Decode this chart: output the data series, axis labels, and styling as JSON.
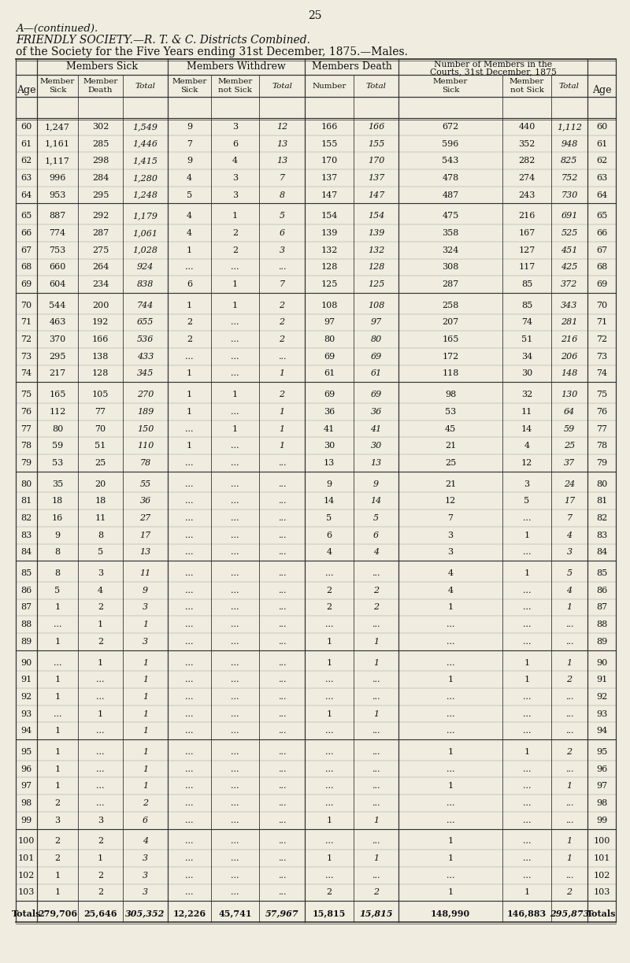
{
  "page_number": "25",
  "title_line1": "A—(continued).",
  "title_line2": "FRIENDLY SOCIETY.—R. T. & C. Districts Combined.",
  "title_line3": "of the Society for the Five Years ending 31st December, 1875.—Males.",
  "rows": [
    {
      "age": "60",
      "ms1": "1,247",
      "ms2": "302",
      "ms3": "1,549",
      "mw1": "9",
      "mw2": "3",
      "mw3": "12",
      "md1": "166",
      "md2": "166",
      "c1": "672",
      "c2": "440",
      "c3": "1,112"
    },
    {
      "age": "61",
      "ms1": "1,161",
      "ms2": "285",
      "ms3": "1,446",
      "mw1": "7",
      "mw2": "6",
      "mw3": "13",
      "md1": "155",
      "md2": "155",
      "c1": "596",
      "c2": "352",
      "c3": "948"
    },
    {
      "age": "62",
      "ms1": "1,117",
      "ms2": "298",
      "ms3": "1,415",
      "mw1": "9",
      "mw2": "4",
      "mw3": "13",
      "md1": "170",
      "md2": "170",
      "c1": "543",
      "c2": "282",
      "c3": "825"
    },
    {
      "age": "63",
      "ms1": "996",
      "ms2": "284",
      "ms3": "1,280",
      "mw1": "4",
      "mw2": "3",
      "mw3": "7",
      "md1": "137",
      "md2": "137",
      "c1": "478",
      "c2": "274",
      "c3": "752"
    },
    {
      "age": "64",
      "ms1": "953",
      "ms2": "295",
      "ms3": "1,248",
      "mw1": "5",
      "mw2": "3",
      "mw3": "8",
      "md1": "147",
      "md2": "147",
      "c1": "487",
      "c2": "243",
      "c3": "730"
    },
    {
      "age": "65",
      "ms1": "887",
      "ms2": "292",
      "ms3": "1,179",
      "mw1": "4",
      "mw2": "1",
      "mw3": "5",
      "md1": "154",
      "md2": "154",
      "c1": "475",
      "c2": "216",
      "c3": "691"
    },
    {
      "age": "66",
      "ms1": "774",
      "ms2": "287",
      "ms3": "1,061",
      "mw1": "4",
      "mw2": "2",
      "mw3": "6",
      "md1": "139",
      "md2": "139",
      "c1": "358",
      "c2": "167",
      "c3": "525"
    },
    {
      "age": "67",
      "ms1": "753",
      "ms2": "275",
      "ms3": "1,028",
      "mw1": "1",
      "mw2": "2",
      "mw3": "3",
      "md1": "132",
      "md2": "132",
      "c1": "324",
      "c2": "127",
      "c3": "451"
    },
    {
      "age": "68",
      "ms1": "660",
      "ms2": "264",
      "ms3": "924",
      "mw1": "...",
      "mw2": "...",
      "mw3": "...",
      "md1": "128",
      "md2": "128",
      "c1": "308",
      "c2": "117",
      "c3": "425"
    },
    {
      "age": "69",
      "ms1": "604",
      "ms2": "234",
      "ms3": "838",
      "mw1": "6",
      "mw2": "1",
      "mw3": "7",
      "md1": "125",
      "md2": "125",
      "c1": "287",
      "c2": "85",
      "c3": "372"
    },
    {
      "age": "70",
      "ms1": "544",
      "ms2": "200",
      "ms3": "744",
      "mw1": "1",
      "mw2": "1",
      "mw3": "2",
      "md1": "108",
      "md2": "108",
      "c1": "258",
      "c2": "85",
      "c3": "343"
    },
    {
      "age": "71",
      "ms1": "463",
      "ms2": "192",
      "ms3": "655",
      "mw1": "2",
      "mw2": "...",
      "mw3": "2",
      "md1": "97",
      "md2": "97",
      "c1": "207",
      "c2": "74",
      "c3": "281"
    },
    {
      "age": "72",
      "ms1": "370",
      "ms2": "166",
      "ms3": "536",
      "mw1": "2",
      "mw2": "...",
      "mw3": "2",
      "md1": "80",
      "md2": "80",
      "c1": "165",
      "c2": "51",
      "c3": "216"
    },
    {
      "age": "73",
      "ms1": "295",
      "ms2": "138",
      "ms3": "433",
      "mw1": "...",
      "mw2": "...",
      "mw3": "...",
      "md1": "69",
      "md2": "69",
      "c1": "172",
      "c2": "34",
      "c3": "206"
    },
    {
      "age": "74",
      "ms1": "217",
      "ms2": "128",
      "ms3": "345",
      "mw1": "1",
      "mw2": "...",
      "mw3": "1",
      "md1": "61",
      "md2": "61",
      "c1": "118",
      "c2": "30",
      "c3": "148"
    },
    {
      "age": "75",
      "ms1": "165",
      "ms2": "105",
      "ms3": "270",
      "mw1": "1",
      "mw2": "1",
      "mw3": "2",
      "md1": "69",
      "md2": "69",
      "c1": "98",
      "c2": "32",
      "c3": "130"
    },
    {
      "age": "76",
      "ms1": "112",
      "ms2": "77",
      "ms3": "189",
      "mw1": "1",
      "mw2": "...",
      "mw3": "1",
      "md1": "36",
      "md2": "36",
      "c1": "53",
      "c2": "11",
      "c3": "64"
    },
    {
      "age": "77",
      "ms1": "80",
      "ms2": "70",
      "ms3": "150",
      "mw1": "...",
      "mw2": "1",
      "mw3": "1",
      "md1": "41",
      "md2": "41",
      "c1": "45",
      "c2": "14",
      "c3": "59"
    },
    {
      "age": "78",
      "ms1": "59",
      "ms2": "51",
      "ms3": "110",
      "mw1": "1",
      "mw2": "...",
      "mw3": "1",
      "md1": "30",
      "md2": "30",
      "c1": "21",
      "c2": "4",
      "c3": "25"
    },
    {
      "age": "79",
      "ms1": "53",
      "ms2": "25",
      "ms3": "78",
      "mw1": "...",
      "mw2": "...",
      "mw3": "...",
      "md1": "13",
      "md2": "13",
      "c1": "25",
      "c2": "12",
      "c3": "37"
    },
    {
      "age": "80",
      "ms1": "35",
      "ms2": "20",
      "ms3": "55",
      "mw1": "...",
      "mw2": "...",
      "mw3": "...",
      "md1": "9",
      "md2": "9",
      "c1": "21",
      "c2": "3",
      "c3": "24"
    },
    {
      "age": "81",
      "ms1": "18",
      "ms2": "18",
      "ms3": "36",
      "mw1": "...",
      "mw2": "...",
      "mw3": "...",
      "md1": "14",
      "md2": "14",
      "c1": "12",
      "c2": "5",
      "c3": "17"
    },
    {
      "age": "82",
      "ms1": "16",
      "ms2": "11",
      "ms3": "27",
      "mw1": "...",
      "mw2": "...",
      "mw3": "...",
      "md1": "5",
      "md2": "5",
      "c1": "7",
      "c2": "...",
      "c3": "7"
    },
    {
      "age": "83",
      "ms1": "9",
      "ms2": "8",
      "ms3": "17",
      "mw1": "...",
      "mw2": "...",
      "mw3": "...",
      "md1": "6",
      "md2": "6",
      "c1": "3",
      "c2": "1",
      "c3": "4"
    },
    {
      "age": "84",
      "ms1": "8",
      "ms2": "5",
      "ms3": "13",
      "mw1": "...",
      "mw2": "...",
      "mw3": "...",
      "md1": "4",
      "md2": "4",
      "c1": "3",
      "c2": "...",
      "c3": "3"
    },
    {
      "age": "85",
      "ms1": "8",
      "ms2": "3",
      "ms3": "11",
      "mw1": "...",
      "mw2": "...",
      "mw3": "...",
      "md1": "...",
      "md2": "...",
      "c1": "4",
      "c2": "1",
      "c3": "5"
    },
    {
      "age": "86",
      "ms1": "5",
      "ms2": "4",
      "ms3": "9",
      "mw1": "...",
      "mw2": "...",
      "mw3": "...",
      "md1": "2",
      "md2": "2",
      "c1": "4",
      "c2": "...",
      "c3": "4"
    },
    {
      "age": "87",
      "ms1": "1",
      "ms2": "2",
      "ms3": "3",
      "mw1": "...",
      "mw2": "...",
      "mw3": "...",
      "md1": "2",
      "md2": "2",
      "c1": "1",
      "c2": "...",
      "c3": "1"
    },
    {
      "age": "88",
      "ms1": "...",
      "ms2": "1",
      "ms3": "1",
      "mw1": "...",
      "mw2": "...",
      "mw3": "...",
      "md1": "...",
      "md2": "...",
      "c1": "...",
      "c2": "...",
      "c3": "..."
    },
    {
      "age": "89",
      "ms1": "1",
      "ms2": "2",
      "ms3": "3",
      "mw1": "...",
      "mw2": "...",
      "mw3": "...",
      "md1": "1",
      "md2": "1",
      "c1": "...",
      "c2": "...",
      "c3": "..."
    },
    {
      "age": "90",
      "ms1": "...",
      "ms2": "1",
      "ms3": "1",
      "mw1": "...",
      "mw2": "...",
      "mw3": "...",
      "md1": "1",
      "md2": "1",
      "c1": "...",
      "c2": "1",
      "c3": "1"
    },
    {
      "age": "91",
      "ms1": "1",
      "ms2": "...",
      "ms3": "1",
      "mw1": "...",
      "mw2": "...",
      "mw3": "...",
      "md1": "...",
      "md2": "...",
      "c1": "1",
      "c2": "1",
      "c3": "2"
    },
    {
      "age": "92",
      "ms1": "1",
      "ms2": "...",
      "ms3": "1",
      "mw1": "...",
      "mw2": "...",
      "mw3": "...",
      "md1": "...",
      "md2": "...",
      "c1": "...",
      "c2": "...",
      "c3": "..."
    },
    {
      "age": "93",
      "ms1": "...",
      "ms2": "1",
      "ms3": "1",
      "mw1": "...",
      "mw2": "...",
      "mw3": "...",
      "md1": "1",
      "md2": "1",
      "c1": "...",
      "c2": "...",
      "c3": "..."
    },
    {
      "age": "94",
      "ms1": "1",
      "ms2": "...",
      "ms3": "1",
      "mw1": "...",
      "mw2": "...",
      "mw3": "...",
      "md1": "...",
      "md2": "...",
      "c1": "...",
      "c2": "...",
      "c3": "..."
    },
    {
      "age": "95",
      "ms1": "1",
      "ms2": "...",
      "ms3": "1",
      "mw1": "...",
      "mw2": "...",
      "mw3": "...",
      "md1": "...",
      "md2": "...",
      "c1": "1",
      "c2": "1",
      "c3": "2"
    },
    {
      "age": "96",
      "ms1": "1",
      "ms2": "...",
      "ms3": "1",
      "mw1": "...",
      "mw2": "...",
      "mw3": "...",
      "md1": "...",
      "md2": "...",
      "c1": "...",
      "c2": "...",
      "c3": "..."
    },
    {
      "age": "97",
      "ms1": "1",
      "ms2": "...",
      "ms3": "1",
      "mw1": "...",
      "mw2": "...",
      "mw3": "...",
      "md1": "...",
      "md2": "...",
      "c1": "1",
      "c2": "...",
      "c3": "1"
    },
    {
      "age": "98",
      "ms1": "2",
      "ms2": "...",
      "ms3": "2",
      "mw1": "...",
      "mw2": "...",
      "mw3": "...",
      "md1": "...",
      "md2": "...",
      "c1": "...",
      "c2": "...",
      "c3": "..."
    },
    {
      "age": "99",
      "ms1": "3",
      "ms2": "3",
      "ms3": "6",
      "mw1": "...",
      "mw2": "...",
      "mw3": "...",
      "md1": "1",
      "md2": "1",
      "c1": "...",
      "c2": "...",
      "c3": "..."
    },
    {
      "age": "100",
      "ms1": "2",
      "ms2": "2",
      "ms3": "4",
      "mw1": "...",
      "mw2": "...",
      "mw3": "...",
      "md1": "...",
      "md2": "...",
      "c1": "1",
      "c2": "...",
      "c3": "1"
    },
    {
      "age": "101",
      "ms1": "2",
      "ms2": "1",
      "ms3": "3",
      "mw1": "...",
      "mw2": "...",
      "mw3": "...",
      "md1": "1",
      "md2": "1",
      "c1": "1",
      "c2": "...",
      "c3": "1"
    },
    {
      "age": "102",
      "ms1": "1",
      "ms2": "2",
      "ms3": "3",
      "mw1": "...",
      "mw2": "...",
      "mw3": "...",
      "md1": "...",
      "md2": "...",
      "c1": "...",
      "c2": "...",
      "c3": "..."
    },
    {
      "age": "103",
      "ms1": "1",
      "ms2": "2",
      "ms3": "3",
      "mw1": "...",
      "mw2": "...",
      "mw3": "...",
      "md1": "2",
      "md2": "2",
      "c1": "1",
      "c2": "1",
      "c3": "2"
    },
    {
      "age": "Totals",
      "ms1": "279,706",
      "ms2": "25,646",
      "ms3": "305,352",
      "mw1": "12,226",
      "mw2": "45,741",
      "mw3": "57,967",
      "md1": "15,815",
      "md2": "15,815",
      "c1": "148,990",
      "c2": "146,883",
      "c3": "295,873"
    }
  ],
  "age_groups": [
    [
      "60",
      "61",
      "62",
      "63",
      "64"
    ],
    [
      "65",
      "66",
      "67",
      "68",
      "69"
    ],
    [
      "70",
      "71",
      "72",
      "73",
      "74"
    ],
    [
      "75",
      "76",
      "77",
      "78",
      "79"
    ],
    [
      "80",
      "81",
      "82",
      "83",
      "84"
    ],
    [
      "85",
      "86",
      "87",
      "88",
      "89"
    ],
    [
      "90",
      "91",
      "92",
      "93",
      "94"
    ],
    [
      "95",
      "96",
      "97",
      "98",
      "99"
    ],
    [
      "100",
      "101",
      "102",
      "103"
    ],
    [
      "Totals"
    ]
  ],
  "bg_color": "#f0ede0",
  "text_color": "#111111",
  "line_color": "#333333"
}
